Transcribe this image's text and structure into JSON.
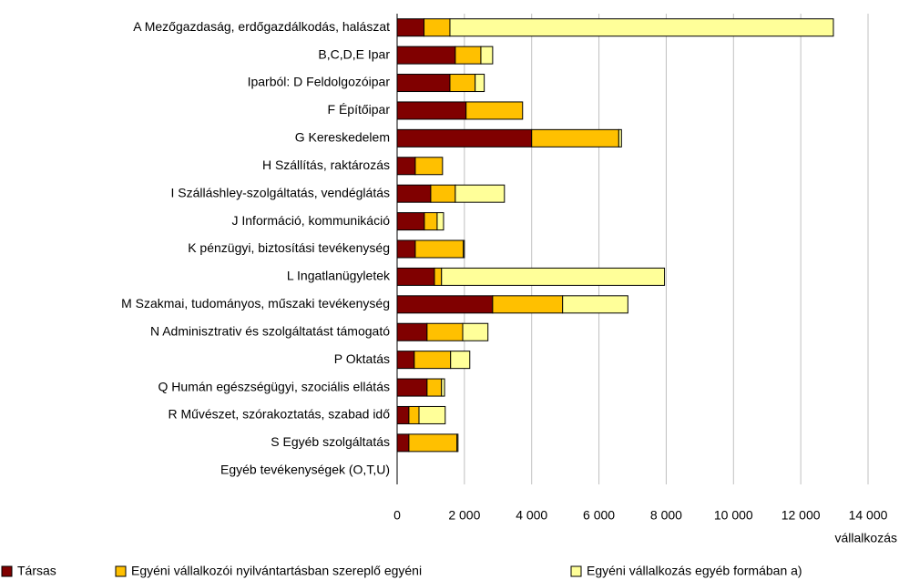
{
  "chart_data": {
    "type": "stacked-bar-horizontal",
    "categories": [
      "A Mezőgazdaság, erdőgazdálkodás, halászat",
      "B,C,D,E Ipar",
      "Iparból: D Feldolgozóipar",
      "F Építőipar",
      "G Kereskedelem",
      "H Szállítás, raktározás",
      "I Szálláshley-szolgáltatás, vendéglátás",
      "J Információ, kommunikáció",
      "K pénzügyi, biztosítási tevékenység",
      "L Ingatlanügyletek",
      "M Szakmai, tudományos, műszaki tevékenység",
      "N Adminisztrativ és szolgáltatást támogató",
      "P Oktatás",
      "Q Humán egészségügyi, szociális ellátás",
      "R Művészet, szórakoztatás, szabad idő",
      "S Egyéb szolgáltatás",
      "Egyéb tevékenységek (O,T,U)"
    ],
    "series": [
      {
        "name": "Társas",
        "color": "#800000",
        "values": [
          800,
          1730,
          1570,
          2050,
          4000,
          540,
          1000,
          810,
          540,
          1110,
          2840,
          890,
          510,
          890,
          350,
          350,
          0
        ]
      },
      {
        "name": "Egyéni vállalkozói nyilvántartásban szereplő egyéni",
        "color": "#ffc000",
        "values": [
          770,
          760,
          750,
          1680,
          2590,
          810,
          730,
          380,
          1430,
          210,
          2080,
          1060,
          1080,
          430,
          300,
          1430,
          0
        ]
      },
      {
        "name": "Egyéni vállalkozás egyéb formában a)",
        "color": "#ffff99",
        "values": [
          11400,
          350,
          270,
          0,
          80,
          0,
          1460,
          190,
          30,
          6630,
          1940,
          750,
          570,
          90,
          780,
          30,
          0
        ]
      }
    ],
    "xlabel": "vállalkozás",
    "xlim": [
      0,
      14000
    ],
    "xticks": [
      0,
      {
        "value": 2000,
        "label": "2 000"
      },
      {
        "value": 4000,
        "label": "4 000"
      },
      {
        "value": 6000,
        "label": "6 000"
      },
      {
        "value": 8000,
        "label": "8 000"
      },
      {
        "value": 10000,
        "label": "10 000"
      },
      {
        "value": 12000,
        "label": "12 000"
      },
      {
        "value": 14000,
        "label": "14 000"
      }
    ],
    "grid": true,
    "legend": "bottom"
  }
}
